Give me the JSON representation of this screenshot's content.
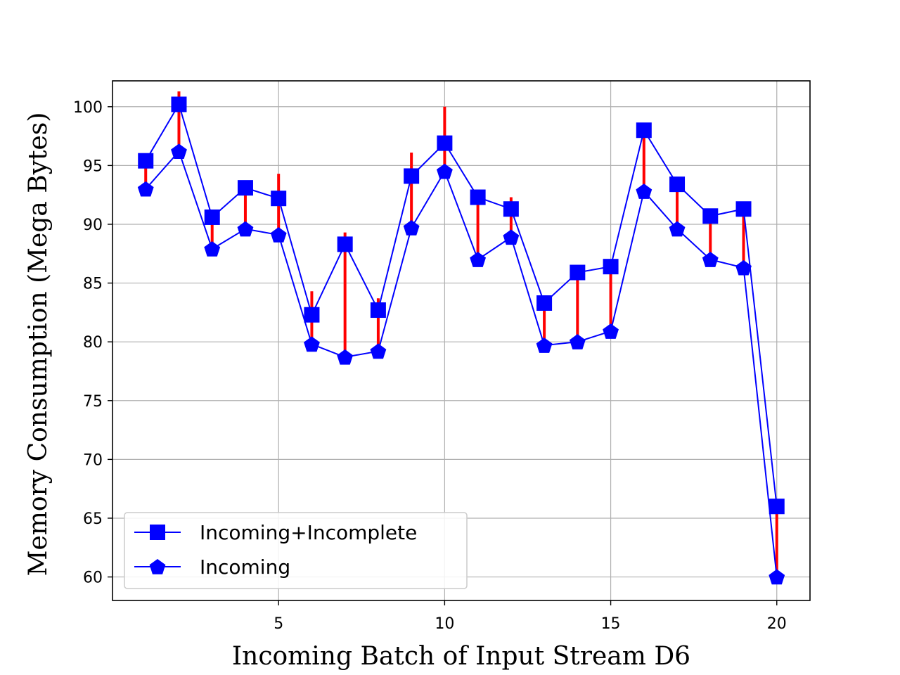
{
  "chart_data": {
    "type": "line",
    "title": "",
    "xlabel": "Incoming Batch of Input Stream D6",
    "ylabel": "Memory Consumption (Mega Bytes)",
    "xlim": [
      0,
      21
    ],
    "ylim": [
      58,
      102.2
    ],
    "xticks": [
      5,
      10,
      15,
      20
    ],
    "yticks": [
      60,
      65,
      70,
      75,
      80,
      85,
      90,
      95,
      100
    ],
    "grid": true,
    "legend_position": "lower-left",
    "x": [
      1,
      2,
      3,
      4,
      5,
      6,
      7,
      8,
      9,
      10,
      11,
      12,
      13,
      14,
      15,
      16,
      17,
      18,
      19,
      20
    ],
    "series": [
      {
        "name": "Incoming+Incomplete",
        "marker": "square",
        "color": "#0000ff",
        "values": [
          95.4,
          100.2,
          90.6,
          93.1,
          92.2,
          82.3,
          88.3,
          82.7,
          94.1,
          96.9,
          92.3,
          91.3,
          83.3,
          85.9,
          86.4,
          98.0,
          93.4,
          90.7,
          91.3,
          66.0
        ]
      },
      {
        "name": "Incoming",
        "marker": "pentagon",
        "color": "#0000ff",
        "values": [
          93.0,
          96.2,
          87.9,
          89.6,
          89.1,
          79.8,
          78.7,
          79.2,
          89.7,
          94.5,
          87.0,
          88.9,
          79.7,
          80.0,
          80.9,
          92.8,
          89.6,
          87.0,
          86.3,
          60.0
        ]
      }
    ],
    "error_bars": {
      "color": "#ff0000",
      "low": [
        93.0,
        96.2,
        87.9,
        89.6,
        89.1,
        79.8,
        78.7,
        79.2,
        89.7,
        94.5,
        87.0,
        88.9,
        79.7,
        80.0,
        80.9,
        92.8,
        89.6,
        87.0,
        86.3,
        60.0
      ],
      "high": [
        95.4,
        101.3,
        90.6,
        93.1,
        94.3,
        84.3,
        89.3,
        83.7,
        96.1,
        100.0,
        92.3,
        92.3,
        83.3,
        85.9,
        86.4,
        98.0,
        93.4,
        90.7,
        91.3,
        66.0
      ]
    }
  }
}
